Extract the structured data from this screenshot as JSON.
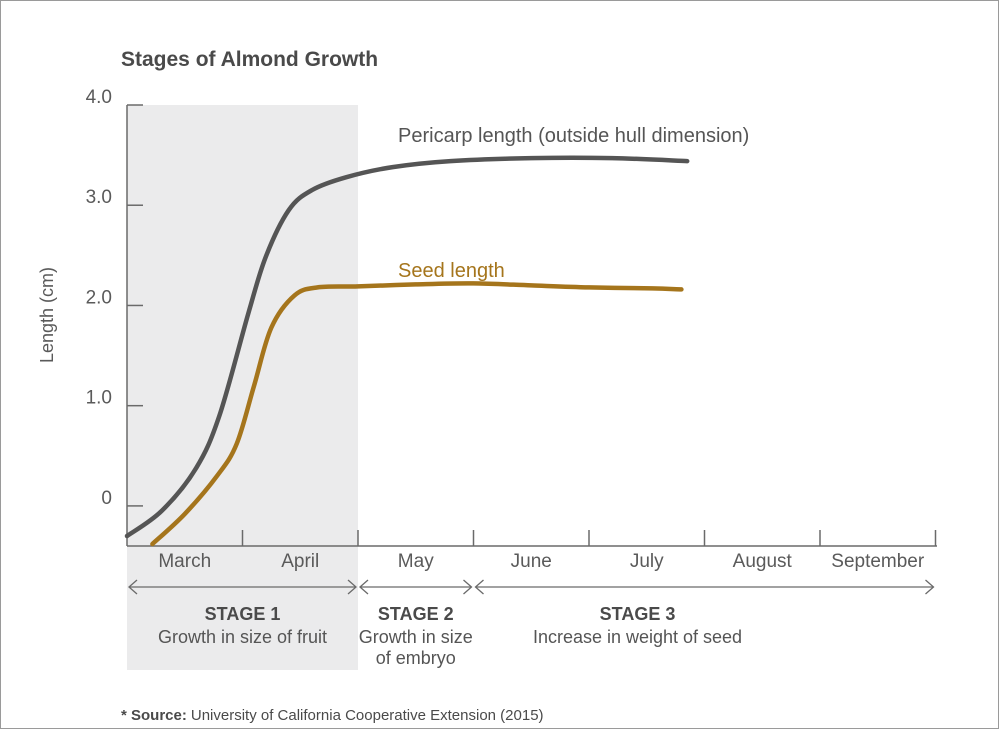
{
  "chart_data": {
    "type": "line",
    "title": "Stages of Almond Growth",
    "ylabel": "Length (cm)",
    "xlabel": "",
    "ylim": [
      -0.4,
      4.0
    ],
    "y_ticks": [
      "0",
      "1.0",
      "2.0",
      "3.0",
      "4.0"
    ],
    "y_tick_values": [
      0,
      1.0,
      2.0,
      3.0,
      4.0
    ],
    "x_ticks": [
      "March",
      "April",
      "May",
      "June",
      "July",
      "August",
      "September"
    ],
    "grid": false,
    "series": [
      {
        "name": "Pericarp length (outside hull dimension)",
        "color": "#555555",
        "x": [
          0.0,
          0.3,
          0.6,
          0.8,
          1.05,
          1.2,
          1.4,
          1.6,
          1.9,
          2.3,
          2.8,
          3.5,
          4.2,
          4.85
        ],
        "y": [
          -0.3,
          -0.05,
          0.38,
          0.9,
          1.92,
          2.48,
          2.95,
          3.15,
          3.28,
          3.38,
          3.44,
          3.47,
          3.47,
          3.44
        ]
      },
      {
        "name": "Seed length",
        "color": "#a5751c",
        "x": [
          0.22,
          0.5,
          0.78,
          0.95,
          1.1,
          1.25,
          1.45,
          1.65,
          2.0,
          2.5,
          3.0,
          3.5,
          4.0,
          4.55,
          4.8
        ],
        "y": [
          -0.38,
          -0.08,
          0.3,
          0.62,
          1.2,
          1.78,
          2.1,
          2.18,
          2.19,
          2.21,
          2.22,
          2.2,
          2.18,
          2.17,
          2.16
        ]
      }
    ],
    "stages": [
      {
        "name": "STAGE 1",
        "description": [
          "Growth in size of fruit"
        ],
        "start": 0,
        "end": 2
      },
      {
        "name": "STAGE 2",
        "description": [
          "Growth in size",
          "of embryo"
        ],
        "start": 2,
        "end": 3
      },
      {
        "name": "STAGE 3",
        "description": [
          "Increase in weight of seed"
        ],
        "start": 3,
        "end": 7
      }
    ],
    "shaded_stage": "STAGE 1"
  },
  "source": {
    "label": "* Source:",
    "text": "University of California Cooperative Extension (2015)"
  }
}
